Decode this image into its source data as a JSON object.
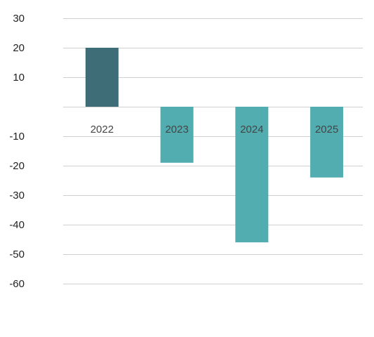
{
  "chart_data": {
    "type": "bar",
    "categories": [
      "2022",
      "2023",
      "2024",
      "2025"
    ],
    "values": [
      20,
      -19,
      -46,
      -24
    ],
    "colors": [
      "#3f6d77",
      "#52adb1",
      "#52adb1",
      "#52adb1"
    ],
    "title": "",
    "xlabel": "",
    "ylabel": "",
    "ylim": [
      -60,
      30
    ],
    "yticks": [
      30,
      20,
      10,
      -10,
      -20,
      -30,
      -40,
      -50,
      -60
    ],
    "grid": true,
    "legend": "none",
    "category_label_position": "just below zero line"
  }
}
